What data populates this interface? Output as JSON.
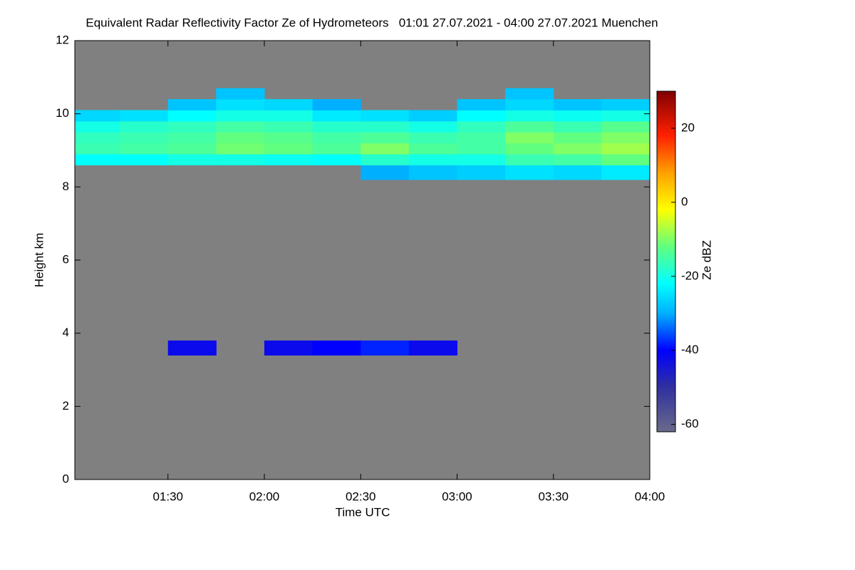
{
  "chart_data": {
    "type": "heatmap",
    "title": "Equivalent Radar Reflectivity Factor Ze of Hydrometeors   01:01 27.07.2021 - 04:00 27.07.2021 Muenchen",
    "x_label": "Time UTC",
    "y_label": "Height km",
    "z_label": "Ze dBZ",
    "background": "#808080",
    "xlim": [
      1.0167,
      4.0
    ],
    "xticks": [
      {
        "value": 1.5,
        "label": "01:30"
      },
      {
        "value": 2.0,
        "label": "02:00"
      },
      {
        "value": 2.5,
        "label": "02:30"
      },
      {
        "value": 3.0,
        "label": "03:00"
      },
      {
        "value": 3.5,
        "label": "03:30"
      },
      {
        "value": 4.0,
        "label": "04:00"
      }
    ],
    "ylim": [
      0,
      12
    ],
    "yticks": [
      0,
      2,
      4,
      6,
      8,
      10,
      12
    ],
    "zlim": [
      -62,
      30
    ],
    "zticks": [
      -60,
      -40,
      -20,
      0,
      20
    ],
    "colorscale": [
      [
        -62,
        "#6a6a8a"
      ],
      [
        -50,
        "#3030a0"
      ],
      [
        -40,
        "#0000ff"
      ],
      [
        -30,
        "#00b0ff"
      ],
      [
        -22,
        "#00ffff"
      ],
      [
        -12,
        "#60ff80"
      ],
      [
        -2,
        "#ffff00"
      ],
      [
        8,
        "#ffa000"
      ],
      [
        18,
        "#ff2000"
      ],
      [
        30,
        "#800000"
      ]
    ],
    "xbins": [
      1.0167,
      1.25,
      1.5,
      1.75,
      2.0,
      2.25,
      2.5,
      2.75,
      3.0,
      3.25,
      3.5,
      3.75,
      4.0
    ],
    "ybins": [
      0,
      3.4,
      3.8,
      8.2,
      8.6,
      8.9,
      9.2,
      9.5,
      9.8,
      10.1,
      10.4,
      10.7
    ],
    "z": [
      [
        null,
        null,
        null,
        null,
        null,
        null,
        null,
        null,
        null,
        null,
        null,
        null
      ],
      [
        null,
        null,
        -42,
        null,
        -42,
        -40,
        -38,
        -42,
        null,
        null,
        null,
        null
      ],
      [
        null,
        null,
        null,
        null,
        null,
        null,
        null,
        null,
        null,
        null,
        null,
        null
      ],
      [
        null,
        null,
        null,
        null,
        null,
        null,
        -30,
        -28,
        -27,
        -25,
        -26,
        -24
      ],
      [
        -22,
        -22,
        -20,
        -20,
        -21,
        -22,
        -18,
        -20,
        -20,
        -16,
        -15,
        -12
      ],
      [
        -16,
        -15,
        -14,
        -11,
        -12,
        -14,
        -10,
        -14,
        -15,
        -12,
        -10,
        -8
      ],
      [
        -17,
        -16,
        -15,
        -12,
        -13,
        -15,
        -14,
        -16,
        -15,
        -10,
        -12,
        -10
      ],
      [
        -20,
        -18,
        -17,
        -15,
        -16,
        -18,
        -18,
        -20,
        -17,
        -14,
        -16,
        -13
      ],
      [
        -26,
        -25,
        -22,
        -20,
        -20,
        -24,
        -25,
        -27,
        -22,
        -20,
        -21,
        -20
      ],
      [
        null,
        null,
        -28,
        -25,
        -26,
        -30,
        null,
        null,
        -28,
        -26,
        -28,
        -27
      ],
      [
        null,
        null,
        null,
        -28,
        null,
        null,
        null,
        null,
        null,
        -28,
        null,
        null
      ]
    ]
  }
}
